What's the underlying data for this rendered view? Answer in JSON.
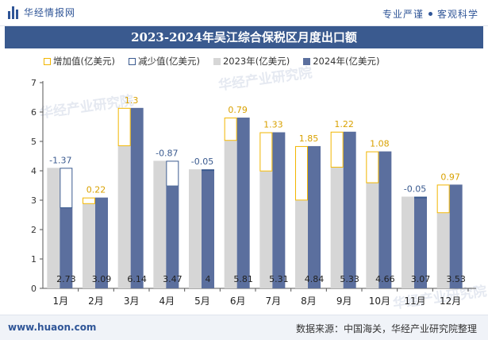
{
  "header": {
    "brand": "华经情报网",
    "tagline_left": "专业严谨",
    "tagline_right": "客观科学"
  },
  "colors": {
    "increase_border": "#f2b600",
    "decrease_border": "#3a5a8f",
    "bar_2023": "#d6d6d6",
    "bar_2024": "#5b6f9e",
    "title_bg": "#3a5a8f"
  },
  "chart_data": {
    "type": "bar",
    "title": "2023-2024年吴江综合保税区月度出口额",
    "categories": [
      "1月",
      "2月",
      "3月",
      "4月",
      "5月",
      "6月",
      "7月",
      "8月",
      "9月",
      "10月",
      "11月",
      "12月"
    ],
    "series": [
      {
        "name": "2023年(亿美元)",
        "values": [
          4.1,
          2.87,
          4.84,
          4.34,
          4.05,
          5.02,
          3.98,
          2.99,
          4.11,
          3.58,
          3.12,
          2.56
        ]
      },
      {
        "name": "2024年(亿美元)",
        "values": [
          2.73,
          3.09,
          6.14,
          3.47,
          4,
          5.81,
          5.31,
          4.84,
          5.33,
          4.66,
          3.07,
          3.53
        ]
      }
    ],
    "changes": [
      "-1.37",
      "0.22",
      "1.3",
      "-0.87",
      "-0.05",
      "0.79",
      "1.33",
      "1.85",
      "1.22",
      "1.08",
      "-0.05",
      "0.97"
    ],
    "value_labels": [
      "2.73",
      "3.09",
      "6.14",
      "3.47",
      "4",
      "5.81",
      "5.31",
      "4.84",
      "5.33",
      "4.66",
      "3.07",
      "3.53"
    ],
    "legend": [
      "增加值(亿美元)",
      "减少值(亿美元)",
      "2023年(亿美元)",
      "2024年(亿美元)"
    ],
    "yticks": [
      "0",
      "1",
      "2",
      "3",
      "4",
      "5",
      "6",
      "7"
    ],
    "ylim": [
      0,
      7
    ],
    "watermark": "华经产业研究院"
  },
  "footer": {
    "website": "www.huaon.com",
    "source": "数据来源：中国海关，华经产业研究院整理"
  }
}
